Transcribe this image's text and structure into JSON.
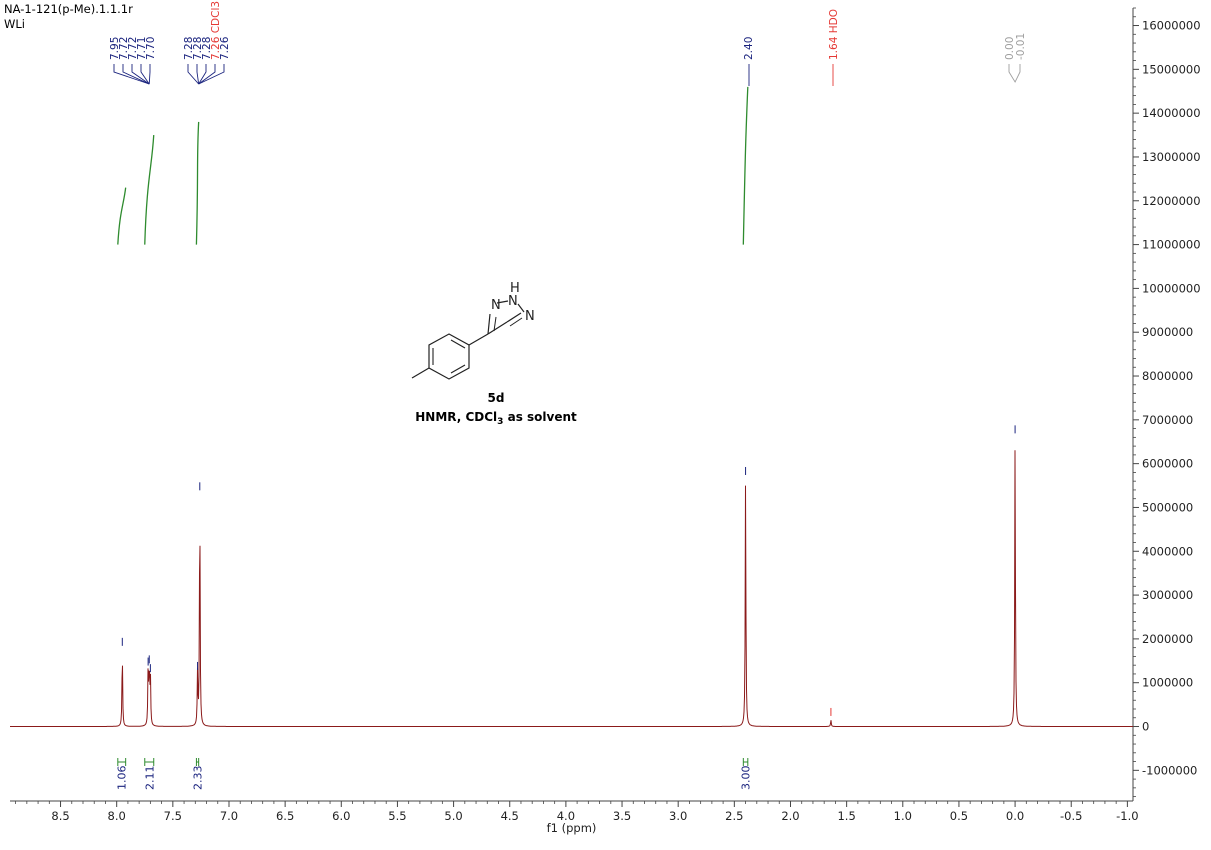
{
  "header": {
    "experiment": "NA-1-121(p-Me).1.1.1r",
    "operator": "WLi"
  },
  "compound": {
    "label": "5d",
    "caption": "HNMR, CDCl",
    "caption_sub": "3",
    "caption_tail": " as solvent"
  },
  "structure_atoms": [
    "N",
    "H",
    "N",
    "N"
  ],
  "colors": {
    "spectrum": "#8b1a1a",
    "axis": "#444444",
    "integral": "#2e8b2e",
    "peak_label": "#1a237e",
    "solvent_label": "#e53935",
    "ref_label": "#9e9e9e"
  },
  "chart_data": {
    "type": "line",
    "title": "",
    "xlabel": "f1 (ppm)",
    "ylabel": "",
    "xlim": [
      8.95,
      -1.05
    ],
    "ylim": [
      -1700000,
      16400000
    ],
    "x_ticks": [
      "8.5",
      "8.0",
      "7.5",
      "7.0",
      "6.5",
      "6.0",
      "5.5",
      "5.0",
      "4.5",
      "4.0",
      "3.5",
      "3.0",
      "2.5",
      "2.0",
      "1.5",
      "1.0",
      "0.5",
      "0.0",
      "-0.5",
      "-1.0"
    ],
    "x_tick_values": [
      8.5,
      8.0,
      7.5,
      7.0,
      6.5,
      6.0,
      5.5,
      5.0,
      4.5,
      4.0,
      3.5,
      3.0,
      2.5,
      2.0,
      1.5,
      1.0,
      0.5,
      0.0,
      -0.5,
      -1.0
    ],
    "y_ticks": [
      "16000000",
      "15000000",
      "14000000",
      "13000000",
      "12000000",
      "11000000",
      "10000000",
      "9000000",
      "8000000",
      "7000000",
      "6000000",
      "5000000",
      "4000000",
      "3000000",
      "2000000",
      "1000000",
      "0",
      "-1000000"
    ],
    "y_tick_values": [
      16000000,
      15000000,
      14000000,
      13000000,
      12000000,
      11000000,
      10000000,
      9000000,
      8000000,
      7000000,
      6000000,
      5000000,
      4000000,
      3000000,
      2000000,
      1000000,
      0,
      -1000000
    ],
    "peaks": [
      {
        "x": 7.95,
        "y": 1750000
      },
      {
        "x": 7.72,
        "y": 1300000
      },
      {
        "x": 7.71,
        "y": 1350000
      },
      {
        "x": 7.7,
        "y": 1150000
      },
      {
        "x": 7.28,
        "y": 1200000
      },
      {
        "x": 7.26,
        "y": 5300000
      },
      {
        "x": 2.4,
        "y": 5650000
      },
      {
        "x": 1.64,
        "y": 150000
      },
      {
        "x": 0.0,
        "y": 6600000
      }
    ],
    "peak_labels_group1": [
      "7.95",
      "7.72",
      "7.72",
      "7.71",
      "7.70"
    ],
    "peak_labels_group2": [
      "7.28",
      "7.28",
      "7.28",
      "7.26 CDCl3",
      "7.26"
    ],
    "peak_label_single": "2.40",
    "peak_label_solvent": "1.64 HDO",
    "peak_labels_ref": [
      "0.00",
      "-0.01"
    ],
    "integrals": [
      {
        "x_start": 7.99,
        "x_end": 7.92,
        "label": "1.06",
        "y_start": 11000000,
        "y_end": 12300000
      },
      {
        "x_start": 7.75,
        "x_end": 7.67,
        "label": "2.11",
        "y_start": 11000000,
        "y_end": 13500000
      },
      {
        "x_start": 7.29,
        "x_end": 7.27,
        "label": "2.33",
        "y_start": 11000000,
        "y_end": 13800000
      },
      {
        "x_start": 2.42,
        "x_end": 2.38,
        "label": "3.00",
        "y_start": 11000000,
        "y_end": 14600000
      }
    ]
  }
}
